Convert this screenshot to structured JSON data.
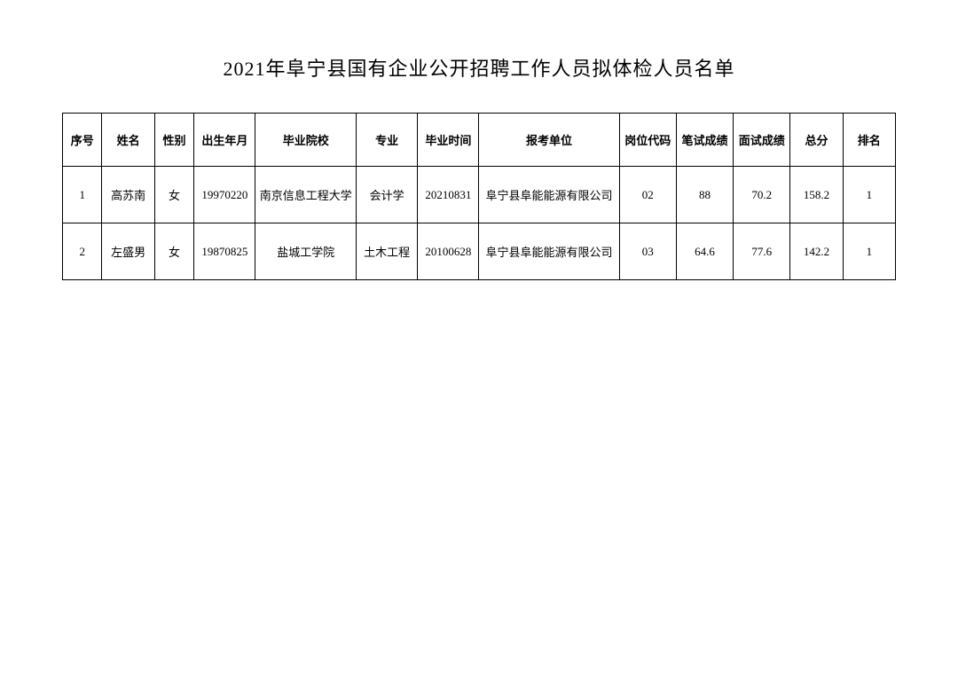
{
  "title": "2021年阜宁县国有企业公开招聘工作人员拟体检人员名单",
  "columns": {
    "seq": "序号",
    "name": "姓名",
    "gender": "性别",
    "birth": "出生年月",
    "school": "毕业院校",
    "major": "专业",
    "gradtime": "毕业时间",
    "unit": "报考单位",
    "postcode": "岗位代码",
    "written": "笔试成绩",
    "interview": "面试成绩",
    "total": "总分",
    "rank": "排名"
  },
  "rows": [
    {
      "seq": "1",
      "name": "高苏南",
      "gender": "女",
      "birth": "19970220",
      "school": "南京信息工程大学",
      "major": "会计学",
      "gradtime": "20210831",
      "unit": "阜宁县阜能能源有限公司",
      "postcode": "02",
      "written": "88",
      "interview": "70.2",
      "total": "158.2",
      "rank": "1"
    },
    {
      "seq": "2",
      "name": "左盛男",
      "gender": "女",
      "birth": "19870825",
      "school": "盐城工学院",
      "major": "土木工程",
      "gradtime": "20100628",
      "unit": "阜宁县阜能能源有限公司",
      "postcode": "03",
      "written": "64.6",
      "interview": "77.6",
      "total": "142.2",
      "rank": "1"
    }
  ],
  "style": {
    "background_color": "#ffffff",
    "border_color": "#000000",
    "text_color": "#000000",
    "title_fontsize": 22,
    "header_fontsize": 13,
    "cell_fontsize": 13,
    "header_row_height": 60,
    "data_row_height": 64
  }
}
